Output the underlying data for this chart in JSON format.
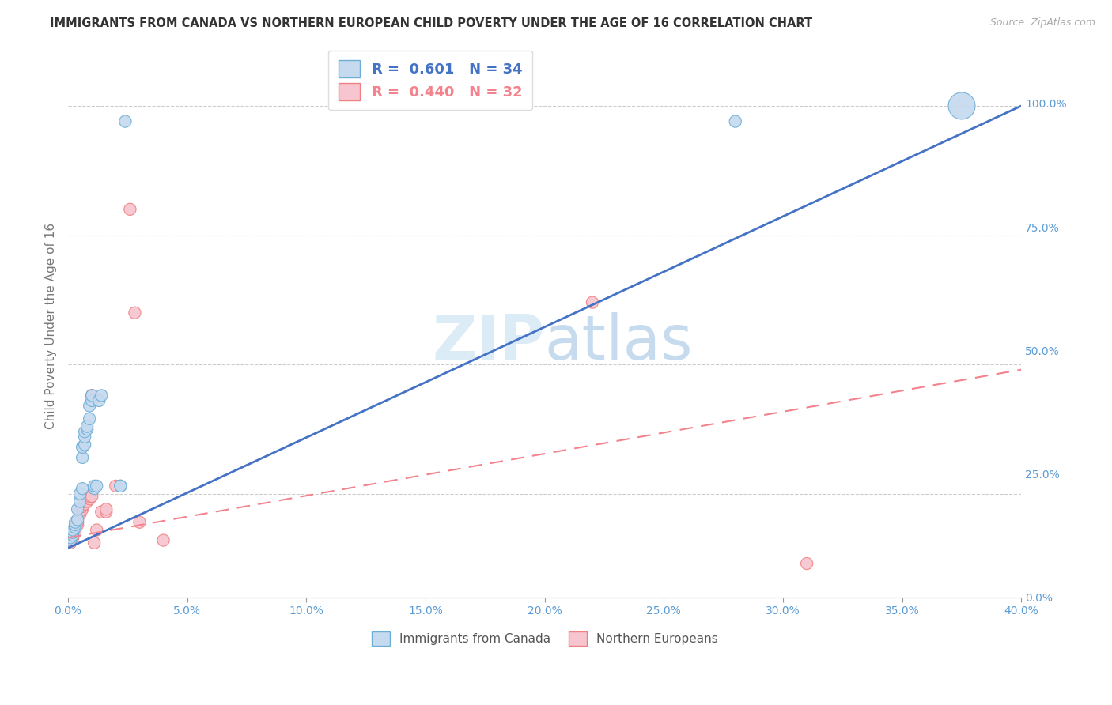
{
  "title": "IMMIGRANTS FROM CANADA VS NORTHERN EUROPEAN CHILD POVERTY UNDER THE AGE OF 16 CORRELATION CHART",
  "source": "Source: ZipAtlas.com",
  "ylabel": "Child Poverty Under the Age of 16",
  "right_yticks": [
    0.0,
    0.25,
    0.5,
    0.75,
    1.0
  ],
  "right_yticklabels": [
    "0.0%",
    "25.0%",
    "50.0%",
    "75.0%",
    "100.0%"
  ],
  "watermark_zip": "ZIP",
  "watermark_atlas": "atlas",
  "legend_blue_label": "Immigrants from Canada",
  "legend_pink_label": "Northern Europeans",
  "R_blue": 0.601,
  "N_blue": 34,
  "R_pink": 0.44,
  "N_pink": 32,
  "blue_fill": "#c5d9ef",
  "pink_fill": "#f7c5cf",
  "blue_edge": "#6baed6",
  "pink_edge": "#f08080",
  "blue_line_color": "#4472C4",
  "pink_line_color": "#f4828c",
  "blue_scatter": [
    [
      0.001,
      0.16
    ],
    [
      0.001,
      0.165
    ],
    [
      0.002,
      0.17
    ],
    [
      0.002,
      0.175
    ],
    [
      0.002,
      0.18
    ],
    [
      0.003,
      0.185
    ],
    [
      0.003,
      0.19
    ],
    [
      0.003,
      0.195
    ],
    [
      0.004,
      0.2
    ],
    [
      0.004,
      0.22
    ],
    [
      0.005,
      0.235
    ],
    [
      0.005,
      0.25
    ],
    [
      0.006,
      0.26
    ],
    [
      0.006,
      0.32
    ],
    [
      0.006,
      0.34
    ],
    [
      0.007,
      0.345
    ],
    [
      0.007,
      0.36
    ],
    [
      0.007,
      0.37
    ],
    [
      0.008,
      0.375
    ],
    [
      0.008,
      0.38
    ],
    [
      0.009,
      0.395
    ],
    [
      0.009,
      0.42
    ],
    [
      0.01,
      0.43
    ],
    [
      0.01,
      0.44
    ],
    [
      0.011,
      0.26
    ],
    [
      0.011,
      0.265
    ],
    [
      0.012,
      0.265
    ],
    [
      0.013,
      0.43
    ],
    [
      0.014,
      0.44
    ],
    [
      0.022,
      0.265
    ],
    [
      0.022,
      0.265
    ],
    [
      0.024,
      0.97
    ],
    [
      0.28,
      0.97
    ],
    [
      0.375,
      1.0
    ]
  ],
  "pink_scatter": [
    [
      0.001,
      0.155
    ],
    [
      0.001,
      0.16
    ],
    [
      0.002,
      0.165
    ],
    [
      0.002,
      0.17
    ],
    [
      0.003,
      0.175
    ],
    [
      0.003,
      0.185
    ],
    [
      0.004,
      0.19
    ],
    [
      0.004,
      0.195
    ],
    [
      0.005,
      0.21
    ],
    [
      0.005,
      0.215
    ],
    [
      0.006,
      0.22
    ],
    [
      0.006,
      0.225
    ],
    [
      0.007,
      0.23
    ],
    [
      0.007,
      0.235
    ],
    [
      0.008,
      0.235
    ],
    [
      0.009,
      0.24
    ],
    [
      0.009,
      0.245
    ],
    [
      0.01,
      0.245
    ],
    [
      0.01,
      0.44
    ],
    [
      0.01,
      0.44
    ],
    [
      0.011,
      0.155
    ],
    [
      0.012,
      0.18
    ],
    [
      0.014,
      0.215
    ],
    [
      0.016,
      0.215
    ],
    [
      0.016,
      0.22
    ],
    [
      0.02,
      0.265
    ],
    [
      0.026,
      0.8
    ],
    [
      0.028,
      0.6
    ],
    [
      0.03,
      0.195
    ],
    [
      0.04,
      0.16
    ],
    [
      0.22,
      0.62
    ],
    [
      0.31,
      0.115
    ]
  ],
  "blue_sizes_base": 120,
  "pink_sizes_base": 120,
  "blue_large_idx": [
    33
  ],
  "blue_large_size": 600,
  "pink_large_idx": [],
  "pink_large_size": 600,
  "xlim": [
    0.0,
    0.4
  ],
  "ylim": [
    0.05,
    1.1
  ],
  "xtick_vals": [
    0.0,
    0.05,
    0.1,
    0.15,
    0.2,
    0.25,
    0.3,
    0.35,
    0.4
  ],
  "xtick_labels": [
    "0.0%",
    "5.0%",
    "10.0%",
    "15.0%",
    "20.0%",
    "25.0%",
    "30.0%",
    "35.0%",
    "40.0%"
  ],
  "ygrid_lines": [
    0.25,
    0.5,
    0.75,
    1.0
  ],
  "blue_line_x0": 0.0,
  "blue_line_y0": 0.145,
  "blue_line_x1": 0.4,
  "blue_line_y1": 1.0,
  "pink_line_x0": 0.0,
  "pink_line_y0": 0.165,
  "pink_line_x1": 0.4,
  "pink_line_y1": 0.49
}
